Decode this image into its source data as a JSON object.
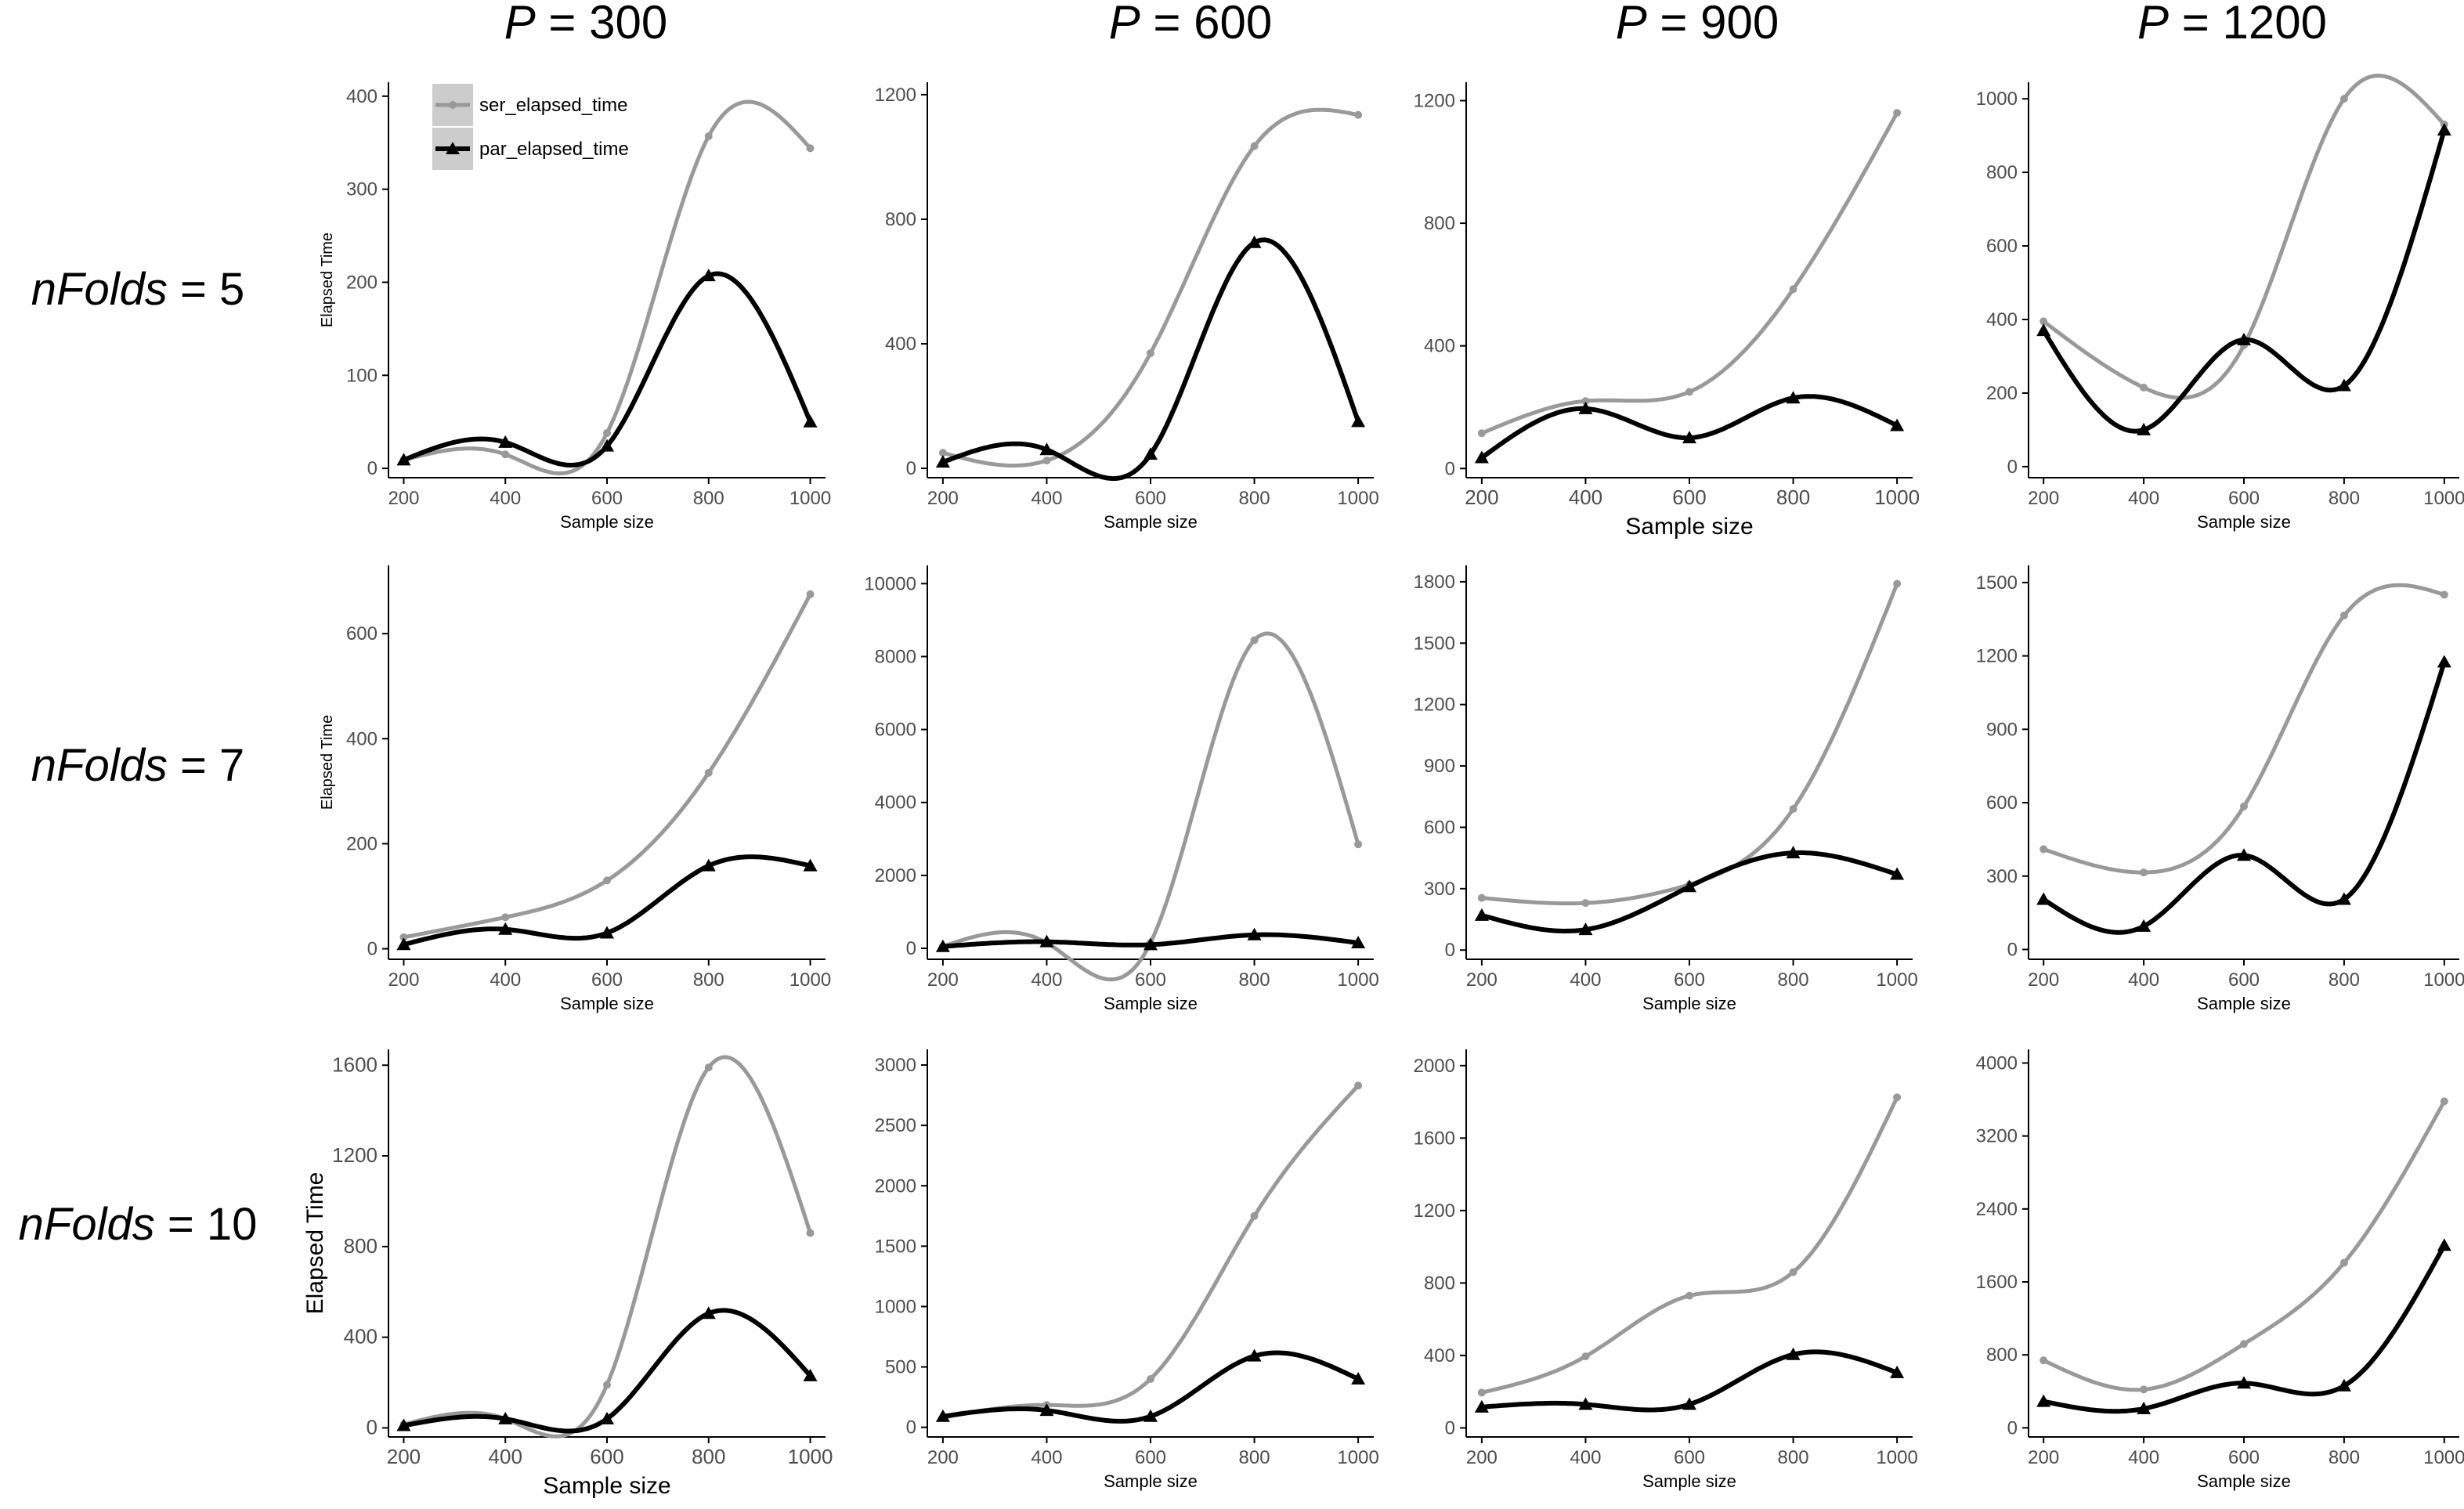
{
  "figure": {
    "col_titles": [
      {
        "var": "P",
        "eq": " = 300"
      },
      {
        "var": "P",
        "eq": " = 600"
      },
      {
        "var": "P",
        "eq": " = 900"
      },
      {
        "var": "P",
        "eq": " = 1200"
      }
    ],
    "row_titles": [
      {
        "var": "nFolds",
        "eq": " = 5"
      },
      {
        "var": "nFolds",
        "eq": " = 7"
      },
      {
        "var": "nFolds",
        "eq": " = 10"
      }
    ],
    "colors": {
      "ser": "#999999",
      "par": "#000000",
      "axis": "#000000",
      "tick_text": "#4d4d4d",
      "legend_key_bg": "#cccccc"
    }
  },
  "chart_data": [
    {
      "type": "line",
      "panel": "P = 300, nFolds = 5",
      "x": [
        200,
        400,
        600,
        800,
        1000
      ],
      "xlabel": "Sample size",
      "ylabel": "Elapsed Time",
      "xlim": [
        170,
        1030
      ],
      "ylim": [
        -10,
        415
      ],
      "yticks": [
        0,
        100,
        200,
        300,
        400
      ],
      "xticks": [
        200,
        400,
        600,
        800,
        1000
      ],
      "legend": {
        "position": "top-left",
        "entries": [
          "ser_elapsed_time",
          "par_elapsed_time"
        ]
      },
      "series": [
        {
          "name": "ser_elapsed_time",
          "values": [
            9,
            15,
            38,
            357,
            344
          ]
        },
        {
          "name": "par_elapsed_time",
          "values": [
            9,
            28,
            24,
            207,
            50
          ]
        }
      ]
    },
    {
      "type": "line",
      "panel": "P = 600, nFolds = 5",
      "x": [
        200,
        400,
        600,
        800,
        1000
      ],
      "xlabel": "Sample size",
      "ylabel": "",
      "xlim": [
        170,
        1030
      ],
      "ylim": [
        -30,
        1240
      ],
      "yticks": [
        0,
        400,
        800,
        1200
      ],
      "xticks": [
        200,
        400,
        600,
        800,
        1000
      ],
      "series": [
        {
          "name": "ser_elapsed_time",
          "values": [
            50,
            25,
            370,
            1035,
            1135
          ]
        },
        {
          "name": "par_elapsed_time",
          "values": [
            20,
            60,
            45,
            725,
            150
          ]
        }
      ]
    },
    {
      "type": "line",
      "panel": "P = 900, nFolds = 5",
      "x": [
        200,
        400,
        600,
        800,
        1000
      ],
      "xlabel": "Sample size",
      "ylabel": "",
      "xlim": [
        170,
        1030
      ],
      "ylim": [
        -30,
        1260
      ],
      "yticks": [
        0,
        400,
        800,
        1200
      ],
      "xticks": [
        200,
        400,
        600,
        800,
        1000
      ],
      "series": [
        {
          "name": "ser_elapsed_time",
          "values": [
            115,
            220,
            250,
            585,
            1160
          ]
        },
        {
          "name": "par_elapsed_time",
          "values": [
            35,
            195,
            100,
            230,
            140
          ]
        }
      ]
    },
    {
      "type": "line",
      "panel": "P = 1200, nFolds = 5",
      "x": [
        200,
        400,
        600,
        800,
        1000
      ],
      "xlabel": "Sample size",
      "ylabel": "",
      "xlim": [
        170,
        1030
      ],
      "ylim": [
        -30,
        1045
      ],
      "yticks": [
        0,
        200,
        400,
        600,
        800,
        1000
      ],
      "xticks": [
        200,
        400,
        600,
        800,
        1000
      ],
      "series": [
        {
          "name": "ser_elapsed_time",
          "values": [
            395,
            215,
            330,
            1000,
            930
          ]
        },
        {
          "name": "par_elapsed_time",
          "values": [
            370,
            100,
            345,
            220,
            915
          ]
        }
      ]
    },
    {
      "type": "line",
      "panel": "P = 300, nFolds = 7",
      "x": [
        200,
        400,
        600,
        800,
        1000
      ],
      "xlabel": "Sample size",
      "ylabel": "Elapsed Time",
      "xlim": [
        170,
        1030
      ],
      "ylim": [
        -20,
        730
      ],
      "yticks": [
        0,
        200,
        400,
        600
      ],
      "xticks": [
        200,
        400,
        600,
        800,
        1000
      ],
      "series": [
        {
          "name": "ser_elapsed_time",
          "values": [
            22,
            60,
            130,
            335,
            675
          ]
        },
        {
          "name": "par_elapsed_time",
          "values": [
            8,
            37,
            30,
            158,
            158
          ]
        }
      ]
    },
    {
      "type": "line",
      "panel": "P = 600, nFolds = 7",
      "x": [
        200,
        400,
        600,
        800,
        1000
      ],
      "xlabel": "Sample size",
      "ylabel": "",
      "xlim": [
        170,
        1030
      ],
      "ylim": [
        -300,
        10500
      ],
      "yticks": [
        0,
        2000,
        4000,
        6000,
        8000,
        10000
      ],
      "xticks": [
        200,
        400,
        600,
        800,
        1000
      ],
      "series": [
        {
          "name": "ser_elapsed_time",
          "values": [
            50,
            150,
            150,
            8450,
            2850
          ]
        },
        {
          "name": "par_elapsed_time",
          "values": [
            50,
            180,
            100,
            370,
            150
          ]
        }
      ]
    },
    {
      "type": "line",
      "panel": "P = 900, nFolds = 7",
      "x": [
        200,
        400,
        600,
        800,
        1000
      ],
      "xlabel": "Sample size",
      "ylabel": "",
      "xlim": [
        170,
        1030
      ],
      "ylim": [
        -45,
        1880
      ],
      "yticks": [
        0,
        300,
        600,
        900,
        1200,
        1500,
        1800
      ],
      "xticks": [
        200,
        400,
        600,
        800,
        1000
      ],
      "series": [
        {
          "name": "ser_elapsed_time",
          "values": [
            255,
            230,
            320,
            690,
            1790
          ]
        },
        {
          "name": "par_elapsed_time",
          "values": [
            170,
            100,
            310,
            475,
            370
          ]
        }
      ]
    },
    {
      "type": "line",
      "panel": "P = 1200, nFolds = 7",
      "x": [
        200,
        400,
        600,
        800,
        1000
      ],
      "xlabel": "Sample size",
      "ylabel": "",
      "xlim": [
        170,
        1030
      ],
      "ylim": [
        -40,
        1570
      ],
      "yticks": [
        0,
        300,
        600,
        900,
        1200,
        1500
      ],
      "xticks": [
        200,
        400,
        600,
        800,
        1000
      ],
      "series": [
        {
          "name": "ser_elapsed_time",
          "values": [
            410,
            315,
            585,
            1365,
            1450
          ]
        },
        {
          "name": "par_elapsed_time",
          "values": [
            205,
            95,
            385,
            205,
            1175
          ]
        }
      ]
    },
    {
      "type": "line",
      "panel": "P = 300, nFolds = 10",
      "x": [
        200,
        400,
        600,
        800,
        1000
      ],
      "xlabel": "Sample size",
      "ylabel": "Elapsed Time",
      "xlim": [
        170,
        1030
      ],
      "ylim": [
        -40,
        1670
      ],
      "yticks": [
        0,
        400,
        800,
        1200,
        1600
      ],
      "xticks": [
        200,
        400,
        600,
        800,
        1000
      ],
      "series": [
        {
          "name": "ser_elapsed_time",
          "values": [
            15,
            40,
            190,
            1590,
            860
          ]
        },
        {
          "name": "par_elapsed_time",
          "values": [
            10,
            40,
            40,
            505,
            230
          ]
        }
      ]
    },
    {
      "type": "line",
      "panel": "P = 600, nFolds = 10",
      "x": [
        200,
        400,
        600,
        800,
        1000
      ],
      "xlabel": "Sample size",
      "ylabel": "",
      "xlim": [
        170,
        1030
      ],
      "ylim": [
        -80,
        3130
      ],
      "yticks": [
        0,
        500,
        1000,
        1500,
        2000,
        2500,
        3000
      ],
      "xticks": [
        200,
        400,
        600,
        800,
        1000
      ],
      "series": [
        {
          "name": "ser_elapsed_time",
          "values": [
            80,
            185,
            400,
            1750,
            2830
          ]
        },
        {
          "name": "par_elapsed_time",
          "values": [
            90,
            140,
            90,
            590,
            400
          ]
        }
      ]
    },
    {
      "type": "line",
      "panel": "P = 900, nFolds = 10",
      "x": [
        200,
        400,
        600,
        800,
        1000
      ],
      "xlabel": "Sample size",
      "ylabel": "",
      "xlim": [
        170,
        1030
      ],
      "ylim": [
        -50,
        2090
      ],
      "yticks": [
        0,
        400,
        800,
        1200,
        1600,
        2000
      ],
      "xticks": [
        200,
        400,
        600,
        800,
        1000
      ],
      "series": [
        {
          "name": "ser_elapsed_time",
          "values": [
            195,
            395,
            730,
            860,
            1825
          ]
        },
        {
          "name": "par_elapsed_time",
          "values": [
            115,
            130,
            130,
            405,
            305
          ]
        }
      ]
    },
    {
      "type": "line",
      "panel": "P = 1200, nFolds = 10",
      "x": [
        200,
        400,
        600,
        800,
        1000
      ],
      "xlabel": "Sample size",
      "ylabel": "",
      "xlim": [
        170,
        1030
      ],
      "ylim": [
        -100,
        4150
      ],
      "yticks": [
        0,
        800,
        1600,
        2400,
        3200,
        4000
      ],
      "xticks": [
        200,
        400,
        600,
        800,
        1000
      ],
      "series": [
        {
          "name": "ser_elapsed_time",
          "values": [
            740,
            420,
            920,
            1810,
            3580
          ]
        },
        {
          "name": "par_elapsed_time",
          "values": [
            290,
            210,
            490,
            460,
            2000
          ]
        }
      ]
    }
  ]
}
